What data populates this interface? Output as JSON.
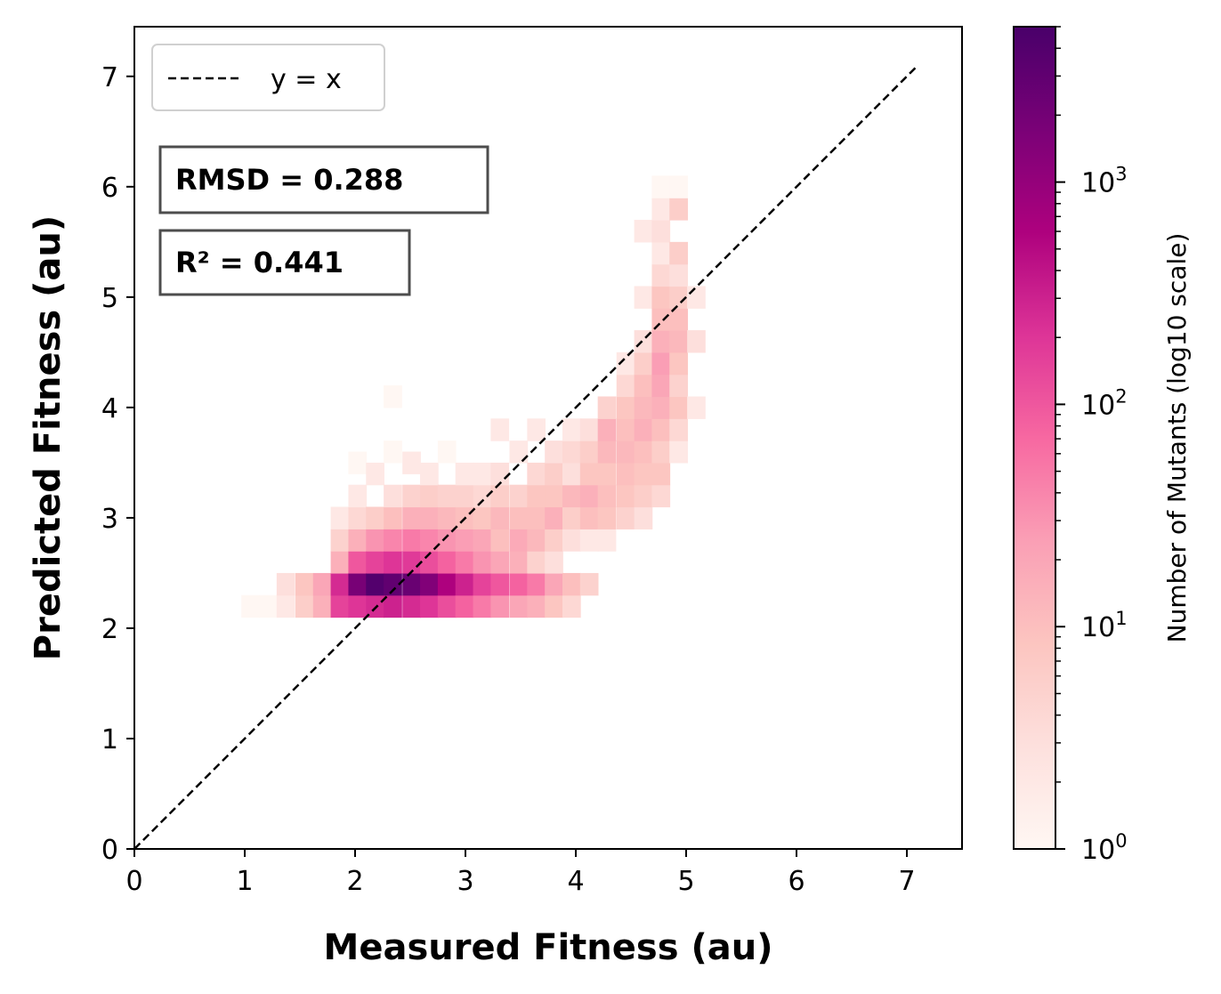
{
  "chart_data": {
    "type": "heatmap",
    "xlabel": "Measured Fitness (au)",
    "ylabel": "Predicted Fitness (au)",
    "xlim": [
      0,
      7.5
    ],
    "ylim": [
      0,
      7.45
    ],
    "x_ticks": [
      "0",
      "1",
      "2",
      "3",
      "4",
      "5",
      "6",
      "7"
    ],
    "y_ticks": [
      "0",
      "1",
      "2",
      "3",
      "4",
      "5",
      "6",
      "7"
    ],
    "bin_width_x": 0.162,
    "bin_height_y": 0.2,
    "reference_line": {
      "label": "y = x",
      "from": [
        0,
        0
      ],
      "to": [
        7.1,
        7.1
      ],
      "style": "dashed"
    },
    "legend_placement": "upper-left",
    "annotations": [
      "RMSD = 0.288",
      "R² = 0.441"
    ],
    "colorbar": {
      "label": "Number of Mutants (log10 scale)",
      "scale": "log10",
      "range": [
        1,
        5000
      ],
      "ticks": [
        {
          "base": "10",
          "exp": "0",
          "value": 1
        },
        {
          "base": "10",
          "exp": "1",
          "value": 10
        },
        {
          "base": "10",
          "exp": "2",
          "value": 100
        },
        {
          "base": "10",
          "exp": "3",
          "value": 1000
        }
      ],
      "colors": [
        "#fff7f3",
        "#fde0dd",
        "#fcc5c0",
        "#fa9fb5",
        "#f768a1",
        "#dd3497",
        "#ae017e",
        "#7a0177",
        "#49006a"
      ]
    },
    "cells": [
      {
        "x": 1.05,
        "y": 2.2,
        "count": 1
      },
      {
        "x": 1.21,
        "y": 2.2,
        "count": 1
      },
      {
        "x": 1.37,
        "y": 2.2,
        "count": 2
      },
      {
        "x": 1.37,
        "y": 2.4,
        "count": 3
      },
      {
        "x": 1.54,
        "y": 2.2,
        "count": 6
      },
      {
        "x": 1.54,
        "y": 2.4,
        "count": 8
      },
      {
        "x": 1.7,
        "y": 2.2,
        "count": 15
      },
      {
        "x": 1.7,
        "y": 2.4,
        "count": 20
      },
      {
        "x": 1.86,
        "y": 2.2,
        "count": 150
      },
      {
        "x": 1.86,
        "y": 2.4,
        "count": 250
      },
      {
        "x": 1.86,
        "y": 2.6,
        "count": 15
      },
      {
        "x": 1.86,
        "y": 2.8,
        "count": 5
      },
      {
        "x": 1.86,
        "y": 3.0,
        "count": 2
      },
      {
        "x": 2.02,
        "y": 2.2,
        "count": 200
      },
      {
        "x": 2.02,
        "y": 2.4,
        "count": 1800
      },
      {
        "x": 2.02,
        "y": 2.6,
        "count": 100
      },
      {
        "x": 2.02,
        "y": 2.8,
        "count": 15
      },
      {
        "x": 2.02,
        "y": 3.0,
        "count": 4
      },
      {
        "x": 2.02,
        "y": 3.2,
        "count": 2
      },
      {
        "x": 2.02,
        "y": 3.5,
        "count": 1
      },
      {
        "x": 2.18,
        "y": 2.2,
        "count": 250
      },
      {
        "x": 2.18,
        "y": 2.4,
        "count": 4000
      },
      {
        "x": 2.18,
        "y": 2.6,
        "count": 150
      },
      {
        "x": 2.18,
        "y": 2.8,
        "count": 30
      },
      {
        "x": 2.18,
        "y": 3.0,
        "count": 6
      },
      {
        "x": 2.18,
        "y": 3.4,
        "count": 2
      },
      {
        "x": 2.34,
        "y": 2.2,
        "count": 300
      },
      {
        "x": 2.34,
        "y": 2.4,
        "count": 3000
      },
      {
        "x": 2.34,
        "y": 2.6,
        "count": 200
      },
      {
        "x": 2.34,
        "y": 2.8,
        "count": 40
      },
      {
        "x": 2.34,
        "y": 3.0,
        "count": 10
      },
      {
        "x": 2.34,
        "y": 3.2,
        "count": 3
      },
      {
        "x": 2.34,
        "y": 3.6,
        "count": 1
      },
      {
        "x": 2.34,
        "y": 4.1,
        "count": 1
      },
      {
        "x": 2.51,
        "y": 2.2,
        "count": 250
      },
      {
        "x": 2.51,
        "y": 2.4,
        "count": 2500
      },
      {
        "x": 2.51,
        "y": 2.6,
        "count": 180
      },
      {
        "x": 2.51,
        "y": 2.8,
        "count": 50
      },
      {
        "x": 2.51,
        "y": 3.0,
        "count": 15
      },
      {
        "x": 2.51,
        "y": 3.2,
        "count": 5
      },
      {
        "x": 2.51,
        "y": 3.5,
        "count": 2
      },
      {
        "x": 2.67,
        "y": 2.2,
        "count": 200
      },
      {
        "x": 2.67,
        "y": 2.4,
        "count": 1500
      },
      {
        "x": 2.67,
        "y": 2.6,
        "count": 120
      },
      {
        "x": 2.67,
        "y": 2.8,
        "count": 40
      },
      {
        "x": 2.67,
        "y": 3.0,
        "count": 15
      },
      {
        "x": 2.67,
        "y": 3.2,
        "count": 6
      },
      {
        "x": 2.67,
        "y": 3.4,
        "count": 2
      },
      {
        "x": 2.83,
        "y": 2.2,
        "count": 120
      },
      {
        "x": 2.83,
        "y": 2.4,
        "count": 600
      },
      {
        "x": 2.83,
        "y": 2.6,
        "count": 80
      },
      {
        "x": 2.83,
        "y": 2.8,
        "count": 30
      },
      {
        "x": 2.83,
        "y": 3.0,
        "count": 12
      },
      {
        "x": 2.83,
        "y": 3.2,
        "count": 5
      },
      {
        "x": 2.83,
        "y": 3.6,
        "count": 1
      },
      {
        "x": 2.99,
        "y": 2.2,
        "count": 80
      },
      {
        "x": 2.99,
        "y": 2.4,
        "count": 300
      },
      {
        "x": 2.99,
        "y": 2.6,
        "count": 50
      },
      {
        "x": 2.99,
        "y": 2.8,
        "count": 25
      },
      {
        "x": 2.99,
        "y": 3.0,
        "count": 10
      },
      {
        "x": 2.99,
        "y": 3.2,
        "count": 5
      },
      {
        "x": 2.99,
        "y": 3.4,
        "count": 2
      },
      {
        "x": 3.15,
        "y": 2.2,
        "count": 50
      },
      {
        "x": 3.15,
        "y": 2.4,
        "count": 150
      },
      {
        "x": 3.15,
        "y": 2.6,
        "count": 30
      },
      {
        "x": 3.15,
        "y": 2.8,
        "count": 20
      },
      {
        "x": 3.15,
        "y": 3.0,
        "count": 8
      },
      {
        "x": 3.15,
        "y": 3.2,
        "count": 4
      },
      {
        "x": 3.15,
        "y": 3.4,
        "count": 2
      },
      {
        "x": 3.31,
        "y": 2.2,
        "count": 30
      },
      {
        "x": 3.31,
        "y": 2.4,
        "count": 100
      },
      {
        "x": 3.31,
        "y": 2.6,
        "count": 20
      },
      {
        "x": 3.31,
        "y": 2.8,
        "count": 10
      },
      {
        "x": 3.31,
        "y": 3.0,
        "count": 12
      },
      {
        "x": 3.31,
        "y": 3.2,
        "count": 6
      },
      {
        "x": 3.31,
        "y": 3.4,
        "count": 3
      },
      {
        "x": 3.31,
        "y": 3.8,
        "count": 2
      },
      {
        "x": 3.48,
        "y": 2.2,
        "count": 20
      },
      {
        "x": 3.48,
        "y": 2.4,
        "count": 80
      },
      {
        "x": 3.48,
        "y": 2.6,
        "count": 15
      },
      {
        "x": 3.48,
        "y": 2.8,
        "count": 18
      },
      {
        "x": 3.48,
        "y": 3.0,
        "count": 10
      },
      {
        "x": 3.48,
        "y": 3.2,
        "count": 5
      },
      {
        "x": 3.48,
        "y": 3.6,
        "count": 2
      },
      {
        "x": 3.64,
        "y": 2.2,
        "count": 15
      },
      {
        "x": 3.64,
        "y": 2.4,
        "count": 50
      },
      {
        "x": 3.64,
        "y": 2.6,
        "count": 5
      },
      {
        "x": 3.64,
        "y": 2.8,
        "count": 12
      },
      {
        "x": 3.64,
        "y": 3.0,
        "count": 10
      },
      {
        "x": 3.64,
        "y": 3.2,
        "count": 8
      },
      {
        "x": 3.64,
        "y": 3.4,
        "count": 4
      },
      {
        "x": 3.64,
        "y": 3.8,
        "count": 2
      },
      {
        "x": 3.8,
        "y": 2.2,
        "count": 8
      },
      {
        "x": 3.8,
        "y": 2.4,
        "count": 20
      },
      {
        "x": 3.8,
        "y": 2.6,
        "count": 3
      },
      {
        "x": 3.8,
        "y": 2.8,
        "count": 6
      },
      {
        "x": 3.8,
        "y": 3.0,
        "count": 15
      },
      {
        "x": 3.8,
        "y": 3.2,
        "count": 8
      },
      {
        "x": 3.8,
        "y": 3.4,
        "count": 6
      },
      {
        "x": 3.8,
        "y": 3.6,
        "count": 3
      },
      {
        "x": 3.96,
        "y": 2.2,
        "count": 4
      },
      {
        "x": 3.96,
        "y": 2.4,
        "count": 10
      },
      {
        "x": 3.96,
        "y": 2.8,
        "count": 3
      },
      {
        "x": 3.96,
        "y": 3.0,
        "count": 6
      },
      {
        "x": 3.96,
        "y": 3.2,
        "count": 12
      },
      {
        "x": 3.96,
        "y": 3.4,
        "count": 3
      },
      {
        "x": 3.96,
        "y": 3.6,
        "count": 4
      },
      {
        "x": 3.96,
        "y": 3.8,
        "count": 2
      },
      {
        "x": 4.12,
        "y": 2.4,
        "count": 5
      },
      {
        "x": 4.12,
        "y": 2.8,
        "count": 2
      },
      {
        "x": 4.12,
        "y": 3.0,
        "count": 10
      },
      {
        "x": 4.12,
        "y": 3.2,
        "count": 15
      },
      {
        "x": 4.12,
        "y": 3.4,
        "count": 8
      },
      {
        "x": 4.12,
        "y": 3.6,
        "count": 6
      },
      {
        "x": 4.12,
        "y": 3.8,
        "count": 3
      },
      {
        "x": 4.28,
        "y": 2.8,
        "count": 2
      },
      {
        "x": 4.28,
        "y": 3.0,
        "count": 8
      },
      {
        "x": 4.28,
        "y": 3.2,
        "count": 10
      },
      {
        "x": 4.28,
        "y": 3.4,
        "count": 8
      },
      {
        "x": 4.28,
        "y": 3.6,
        "count": 12
      },
      {
        "x": 4.28,
        "y": 3.8,
        "count": 15
      },
      {
        "x": 4.28,
        "y": 4.0,
        "count": 5
      },
      {
        "x": 4.45,
        "y": 3.0,
        "count": 5
      },
      {
        "x": 4.45,
        "y": 3.2,
        "count": 8
      },
      {
        "x": 4.45,
        "y": 3.4,
        "count": 10
      },
      {
        "x": 4.45,
        "y": 3.6,
        "count": 12
      },
      {
        "x": 4.45,
        "y": 3.8,
        "count": 10
      },
      {
        "x": 4.45,
        "y": 4.0,
        "count": 8
      },
      {
        "x": 4.45,
        "y": 4.2,
        "count": 4
      },
      {
        "x": 4.45,
        "y": 4.4,
        "count": 2
      },
      {
        "x": 4.61,
        "y": 3.0,
        "count": 3
      },
      {
        "x": 4.61,
        "y": 3.2,
        "count": 6
      },
      {
        "x": 4.61,
        "y": 3.4,
        "count": 8
      },
      {
        "x": 4.61,
        "y": 3.6,
        "count": 10
      },
      {
        "x": 4.61,
        "y": 3.8,
        "count": 15
      },
      {
        "x": 4.61,
        "y": 4.0,
        "count": 12
      },
      {
        "x": 4.61,
        "y": 4.2,
        "count": 10
      },
      {
        "x": 4.61,
        "y": 4.4,
        "count": 6
      },
      {
        "x": 4.61,
        "y": 4.6,
        "count": 3
      },
      {
        "x": 4.61,
        "y": 5.0,
        "count": 2
      },
      {
        "x": 4.61,
        "y": 5.6,
        "count": 2
      },
      {
        "x": 4.77,
        "y": 3.2,
        "count": 4
      },
      {
        "x": 4.77,
        "y": 3.4,
        "count": 8
      },
      {
        "x": 4.77,
        "y": 3.6,
        "count": 6
      },
      {
        "x": 4.77,
        "y": 3.8,
        "count": 10
      },
      {
        "x": 4.77,
        "y": 4.0,
        "count": 15
      },
      {
        "x": 4.77,
        "y": 4.2,
        "count": 20
      },
      {
        "x": 4.77,
        "y": 4.4,
        "count": 25
      },
      {
        "x": 4.77,
        "y": 4.6,
        "count": 15
      },
      {
        "x": 4.77,
        "y": 4.8,
        "count": 10
      },
      {
        "x": 4.77,
        "y": 5.0,
        "count": 8
      },
      {
        "x": 4.77,
        "y": 5.2,
        "count": 4
      },
      {
        "x": 4.77,
        "y": 5.4,
        "count": 2
      },
      {
        "x": 4.77,
        "y": 5.6,
        "count": 3
      },
      {
        "x": 4.77,
        "y": 5.8,
        "count": 2
      },
      {
        "x": 4.77,
        "y": 6.0,
        "count": 1
      },
      {
        "x": 4.93,
        "y": 3.6,
        "count": 2
      },
      {
        "x": 4.93,
        "y": 3.8,
        "count": 4
      },
      {
        "x": 4.93,
        "y": 4.0,
        "count": 8
      },
      {
        "x": 4.93,
        "y": 4.2,
        "count": 5
      },
      {
        "x": 4.93,
        "y": 4.4,
        "count": 8
      },
      {
        "x": 4.93,
        "y": 4.6,
        "count": 12
      },
      {
        "x": 4.93,
        "y": 4.8,
        "count": 10
      },
      {
        "x": 4.93,
        "y": 5.0,
        "count": 6
      },
      {
        "x": 4.93,
        "y": 5.2,
        "count": 3
      },
      {
        "x": 4.93,
        "y": 5.4,
        "count": 6
      },
      {
        "x": 4.93,
        "y": 5.8,
        "count": 6
      },
      {
        "x": 4.93,
        "y": 6.0,
        "count": 1
      },
      {
        "x": 5.09,
        "y": 4.0,
        "count": 2
      },
      {
        "x": 5.09,
        "y": 4.6,
        "count": 3
      },
      {
        "x": 5.09,
        "y": 5.0,
        "count": 2
      }
    ]
  }
}
